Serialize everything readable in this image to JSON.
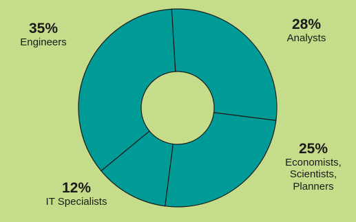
{
  "chart_data": {
    "type": "pie",
    "style": "donut",
    "categories": [
      "Analysts",
      "Economists, Scientists, Planners",
      "IT Specialists",
      "Engineers"
    ],
    "values": [
      28,
      25,
      12,
      35
    ],
    "labels": {
      "analysts": {
        "pct": "28%",
        "name": "Analysts"
      },
      "economists": {
        "pct": "25%",
        "line1": "Economists,",
        "line2": "Scientists,",
        "line3": "Planners"
      },
      "it": {
        "pct": "12%",
        "name": "IT Specialists"
      },
      "engineers": {
        "pct": "35%",
        "name": "Engineers"
      }
    },
    "colors": {
      "slice": "#009b96",
      "edge": "#1a1a1a",
      "background": "#c5dc8a",
      "hole": "#c5dc8a"
    },
    "legend": "none"
  }
}
